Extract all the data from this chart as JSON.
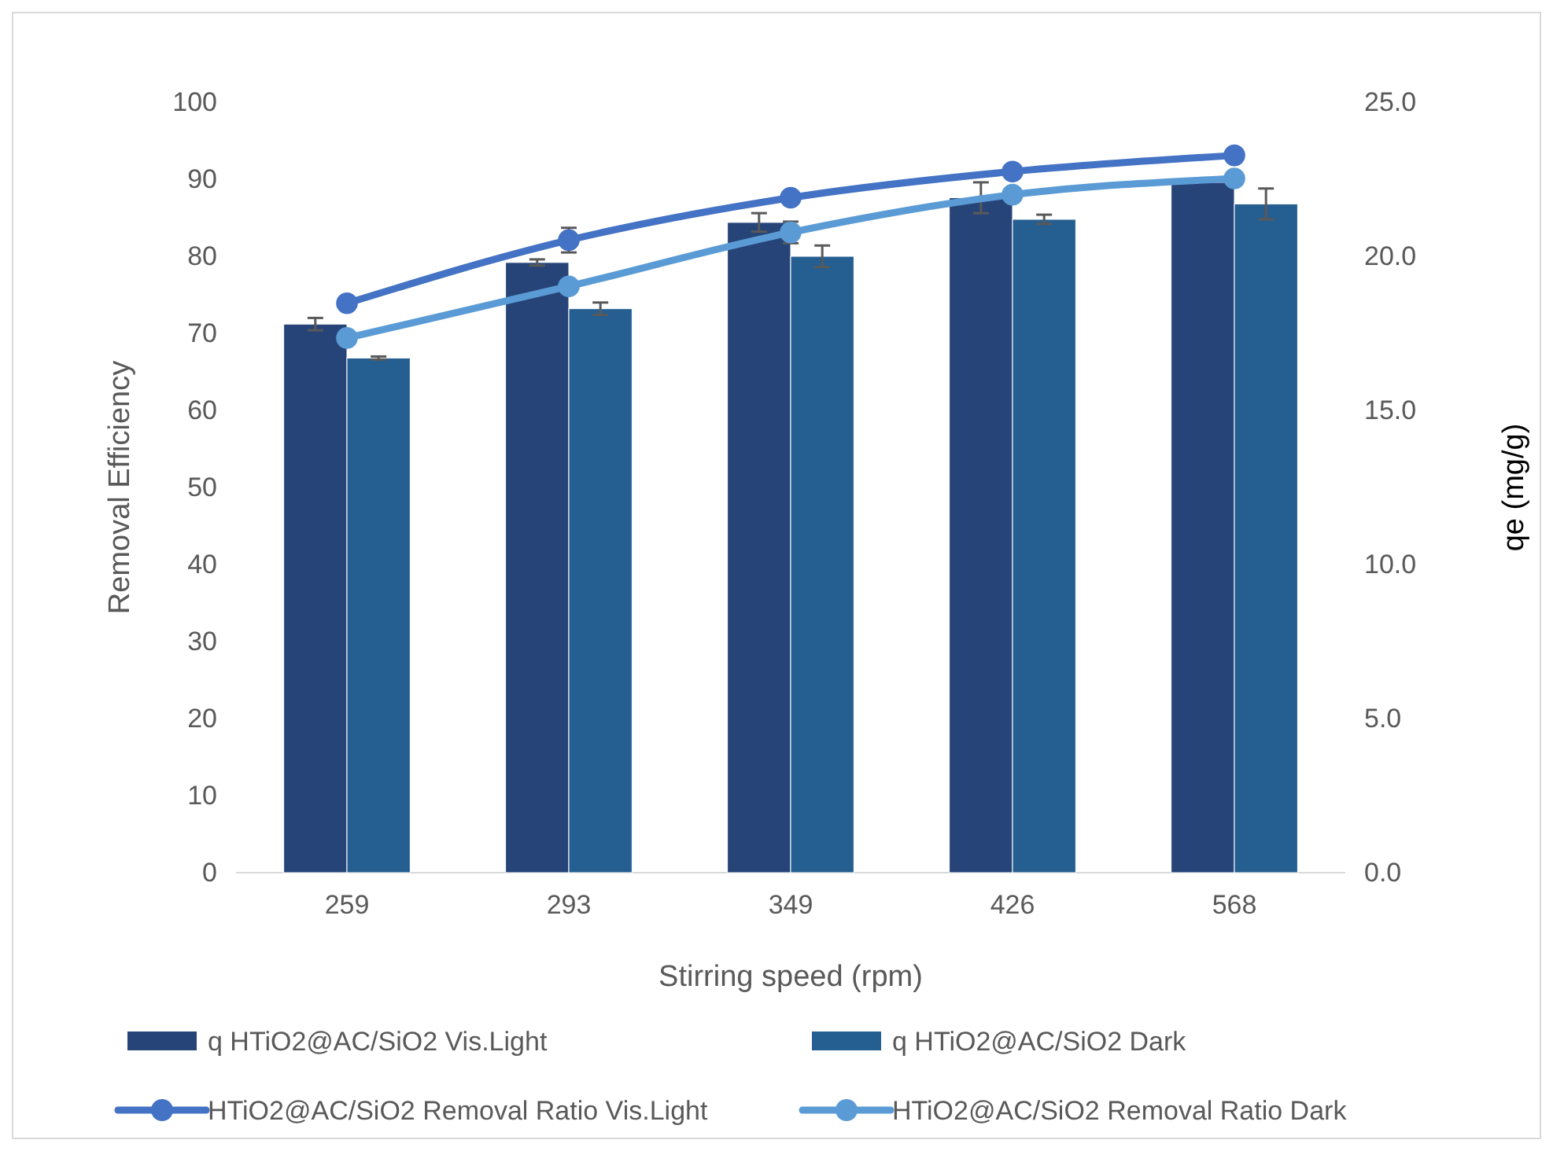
{
  "chart_data": {
    "type": "bar",
    "xlabel": "Stirring speed (rpm)",
    "ylabel": "Removal Efficiency",
    "y2label": "qe (mg/g)",
    "categories": [
      "259",
      "293",
      "349",
      "426",
      "568"
    ],
    "series": [
      {
        "name": "q HTiO2@AC/SiO2 Vis.Light",
        "axis": "y2",
        "color": "#264478",
        "values": [
          17.8,
          19.8,
          21.1,
          21.9,
          22.4
        ],
        "errors": [
          0.2,
          0.1,
          0.3,
          0.5,
          null
        ]
      },
      {
        "name": "q HTiO2@AC/SiO2 Dark",
        "axis": "y2",
        "color": "#255e91",
        "values": [
          16.7,
          18.3,
          20.0,
          21.2,
          21.7
        ],
        "errors": [
          0.05,
          0.2,
          0.35,
          0.15,
          0.5
        ]
      },
      {
        "name": "HTiO2@AC/SiO2 Removal Ratio Vis.Light",
        "type": "line",
        "color": "#4472c4",
        "values": [
          73.9,
          82.1,
          87.6,
          91.0,
          93.1
        ],
        "errors": [
          null,
          1.6,
          null,
          null,
          null
        ]
      },
      {
        "name": "HTiO2@AC/SiO2 Removal Ratio Dark",
        "type": "line",
        "color": "#5b9bd5",
        "values": [
          69.4,
          76.1,
          83.1,
          88.0,
          90.1
        ],
        "errors": [
          null,
          null,
          1.4,
          null,
          null
        ]
      }
    ],
    "ylim": [
      0,
      100
    ],
    "yticks": [
      0,
      10,
      20,
      30,
      40,
      50,
      60,
      70,
      80,
      90,
      100
    ],
    "y2lim": [
      0,
      25
    ],
    "y2ticks": [
      {
        "value": 0,
        "label": "0.0"
      },
      {
        "value": 5,
        "label": "5.0"
      },
      {
        "value": 10,
        "label": "10.0"
      },
      {
        "value": 15,
        "label": "15.0"
      },
      {
        "value": 20,
        "label": "20.0"
      },
      {
        "value": 25,
        "label": "25.0"
      }
    ],
    "marker": "circle",
    "legend": "bottom",
    "grid": false
  }
}
